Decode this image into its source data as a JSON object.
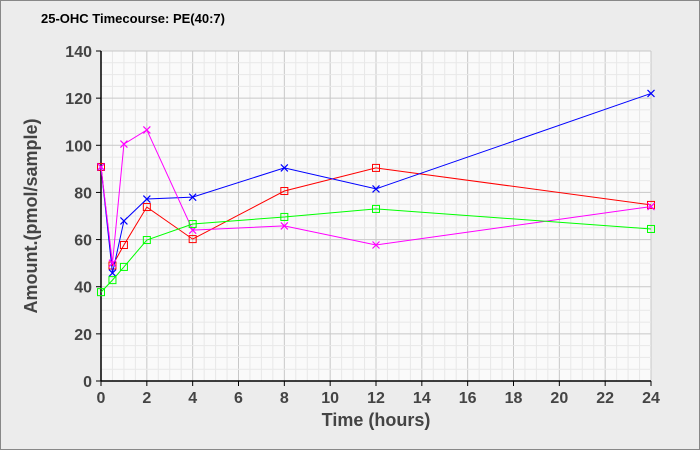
{
  "chart_data": {
    "type": "line",
    "title": "25-OHC Timecourse: PE(40:7)",
    "xlabel": "Time (hours)",
    "ylabel": "Amount.(pmol/sample)",
    "xlim": [
      0,
      24
    ],
    "ylim": [
      0,
      140
    ],
    "xticks": [
      0,
      2,
      4,
      6,
      8,
      10,
      12,
      14,
      16,
      18,
      20,
      22,
      24
    ],
    "yticks": [
      0,
      20,
      40,
      60,
      80,
      100,
      120,
      140
    ],
    "grid": true,
    "series": [
      {
        "color": "#ff0000",
        "marker": "square",
        "x": [
          0,
          0.5,
          1,
          2,
          4,
          8,
          12,
          24
        ],
        "y": [
          90.8,
          49,
          57.7,
          73.8,
          60.2,
          80.6,
          90.4,
          74.7
        ]
      },
      {
        "color": "#0000ff",
        "marker": "x",
        "x": [
          0,
          0.5,
          1,
          2,
          4,
          8,
          12,
          24
        ],
        "y": [
          90.8,
          45.8,
          67.9,
          77.2,
          78,
          90.4,
          81.5,
          122
        ]
      },
      {
        "color": "#ff00ff",
        "marker": "x",
        "x": [
          0,
          0.5,
          1,
          2,
          4,
          8,
          12,
          24
        ],
        "y": [
          90.8,
          50,
          100.5,
          106.5,
          64,
          65.8,
          57.7,
          74
        ]
      },
      {
        "color": "#00ff00",
        "marker": "square",
        "x": [
          0,
          0.5,
          1,
          2,
          4,
          8,
          12,
          24
        ],
        "y": [
          37.7,
          42.8,
          48.4,
          59.8,
          66.6,
          69.6,
          73,
          64.5
        ]
      }
    ]
  }
}
